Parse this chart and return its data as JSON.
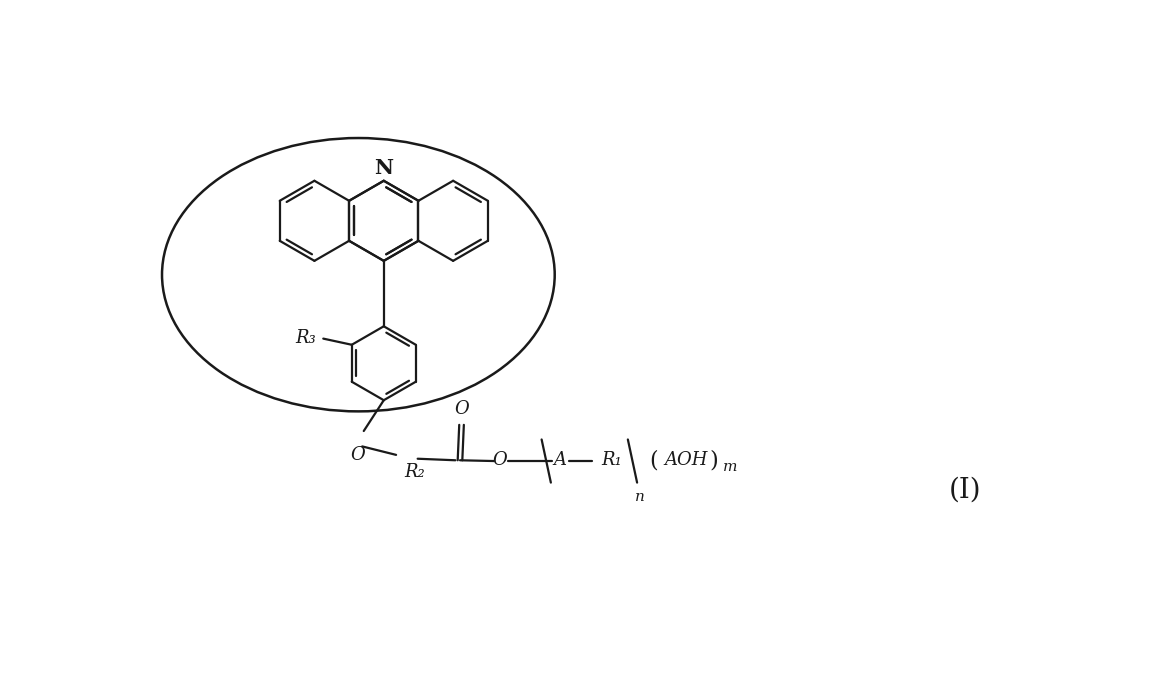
{
  "background_color": "#ffffff",
  "line_color": "#1a1a1a",
  "line_width": 1.6,
  "figure_width": 11.68,
  "figure_height": 6.85,
  "label_I": "(Ⅰ)",
  "label_N": "N",
  "label_O_phenol": "O",
  "label_O_carbonyl": "O",
  "label_O_ester": "O",
  "label_R1": "R₁",
  "label_R2": "R₂",
  "label_R3": "R₃",
  "label_A": "A",
  "label_AOH": "AOH",
  "label_n": "n",
  "label_m": "m"
}
